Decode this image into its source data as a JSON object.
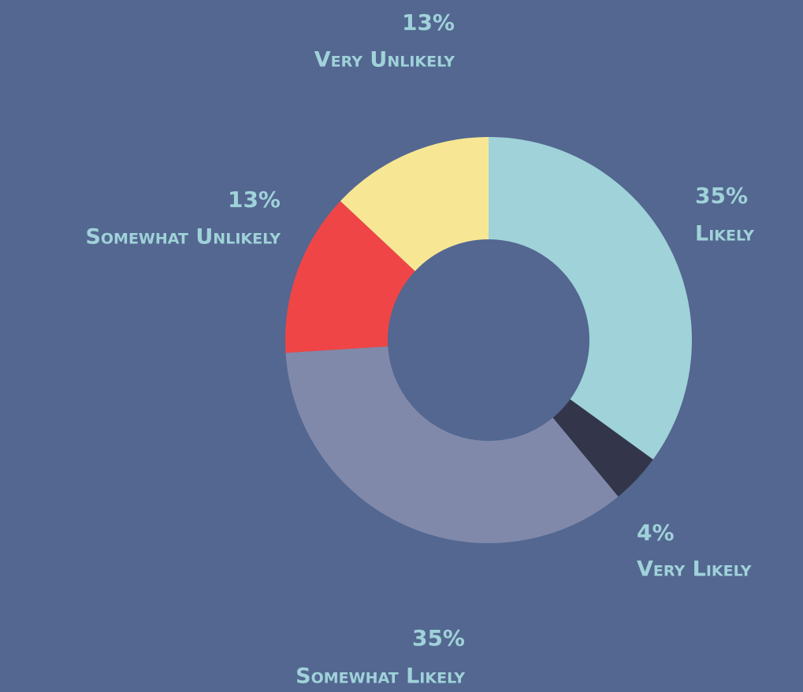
{
  "chart_data": {
    "type": "donut",
    "categories": [
      "Likely",
      "Very Likely",
      "Somewhat Likely",
      "Somewhat Unlikely",
      "Very Unlikely"
    ],
    "values": [
      35,
      4,
      35,
      13,
      13
    ],
    "value_labels": [
      "35%",
      "4%",
      "35%",
      "13%",
      "13%"
    ],
    "colors": [
      "#a0d2d9",
      "#33364a",
      "#8189ab",
      "#f04546",
      "#f7e795"
    ]
  }
}
